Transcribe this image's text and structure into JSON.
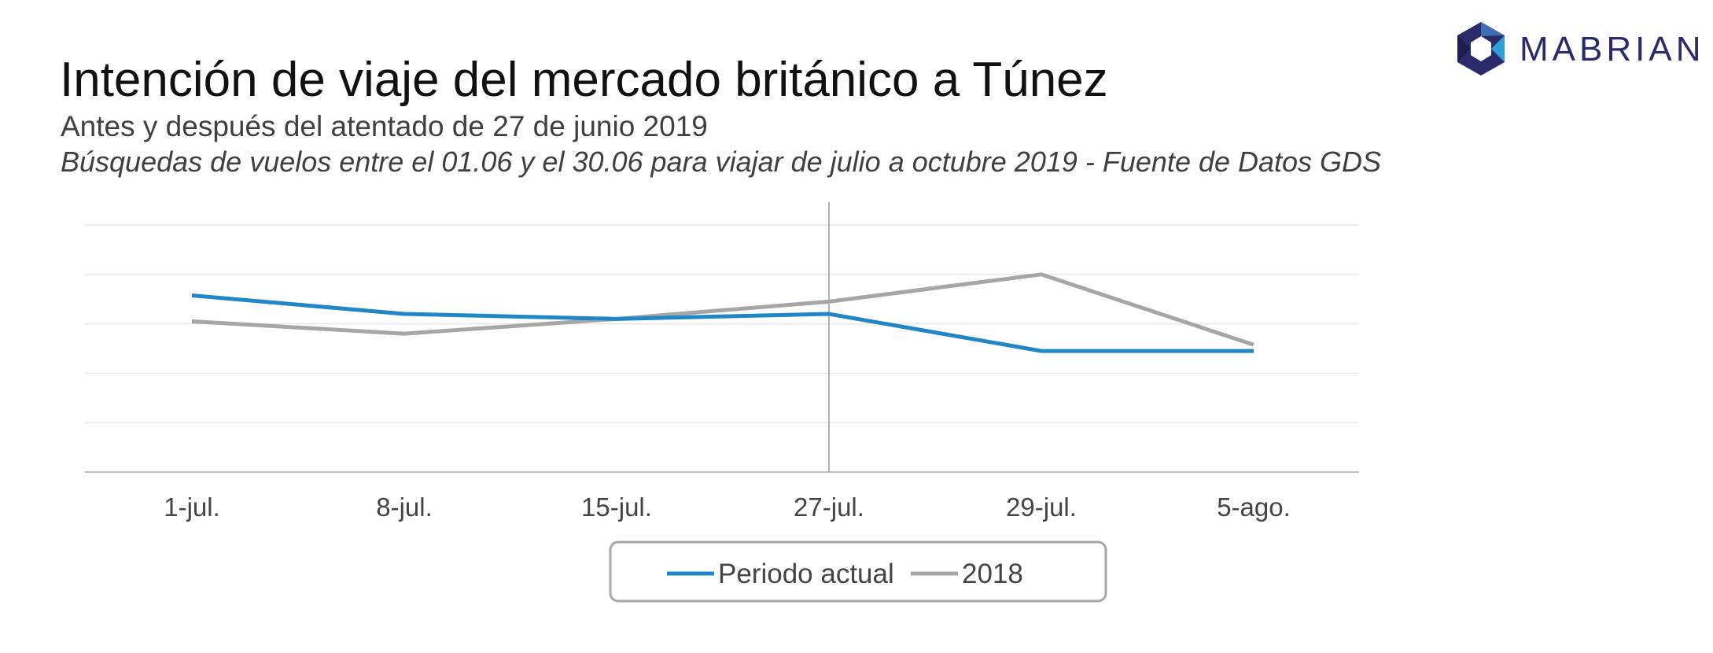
{
  "header": {
    "title": "Intención de viaje del mercado británico a Túnez",
    "subtitle": "Antes y después del atentado de 27 de junio 2019",
    "note": "Búsquedas de vuelos entre el 01.06 y el 30.06 para viajar de julio a octubre 2019 - Fuente de Datos GDS"
  },
  "logo": {
    "text": "MABRIAN",
    "icon": "hexagon-aperture-icon"
  },
  "colors": {
    "periodo_actual": "#1f87c8",
    "y2018": "#a6a6a6",
    "grid": "#e6e6e6",
    "axis": "#bfbfbf",
    "marker": "#9a9a9a"
  },
  "chart_data": {
    "type": "line",
    "categories": [
      "1-jul.",
      "8-jul.",
      "15-jul.",
      "27-jul.",
      "29-jul.",
      "5-ago."
    ],
    "series": [
      {
        "name": "Periodo actual",
        "values": [
          71.5,
          64,
          62,
          64,
          49,
          49
        ]
      },
      {
        "name": "2018",
        "values": [
          61,
          56,
          62,
          69,
          80,
          51.5
        ]
      }
    ],
    "ylim": [
      0,
      100
    ],
    "grid": true,
    "y_tick_labels_shown": false,
    "vertical_marker_category": "27-jul.",
    "legend_position": "bottom",
    "title": "",
    "xlabel": "",
    "ylabel": ""
  }
}
